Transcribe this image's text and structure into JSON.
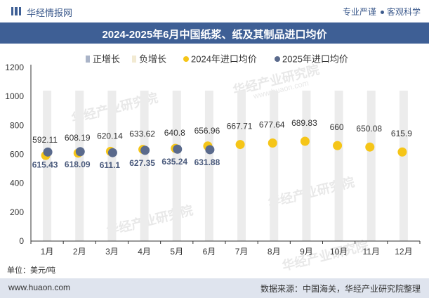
{
  "header": {
    "brand": "华经情报网",
    "slogan_left": "专业严谨",
    "slogan_right": "客观科学"
  },
  "footer": {
    "unit": "单位：美元/吨",
    "site": "www.huaon.com",
    "source": "数据来源：中国海关，华经产业研究院整理"
  },
  "watermark": {
    "text": "华经产业研究院",
    "url": "www.huaon.com"
  },
  "colors": {
    "title_bg": "#3e5f95",
    "positive_growth": "#aab4c8",
    "negative_growth": "#f2ead2",
    "series_2024": "#f5c518",
    "series_2025": "#5a6a8c",
    "band": "#ececec"
  },
  "chart_data": {
    "type": "scatter",
    "title": "2024-2025年6月中国纸浆、纸及其制品进口均价",
    "categories": [
      "1月",
      "2月",
      "3月",
      "4月",
      "5月",
      "6月",
      "7月",
      "8月",
      "9月",
      "10月",
      "11月",
      "12月"
    ],
    "ylim": [
      0,
      1200
    ],
    "yticks": [
      0,
      200,
      400,
      600,
      800,
      1000,
      1200
    ],
    "legend_position": "top",
    "legend": [
      "正增长",
      "负增长",
      "2024年进口均价",
      "2025年进口均价"
    ],
    "series": [
      {
        "name": "2024年进口均价",
        "values": [
          592.11,
          608.19,
          620.14,
          633.62,
          640.8,
          656.96,
          667.71,
          677.64,
          689.83,
          660,
          650.08,
          615.9
        ],
        "labels": [
          "592.11",
          "608.19",
          "620.14",
          "633.62",
          "640.8",
          "656.96",
          "667.71",
          "677.64",
          "689.83",
          "660",
          "650.08",
          "615.9"
        ]
      },
      {
        "name": "2025年进口均价",
        "values": [
          615.43,
          618.09,
          611.1,
          627.35,
          635.24,
          631.88
        ],
        "labels": [
          "615.43",
          "618.09",
          "611.1",
          "627.35",
          "635.24",
          "631.88"
        ]
      }
    ]
  }
}
